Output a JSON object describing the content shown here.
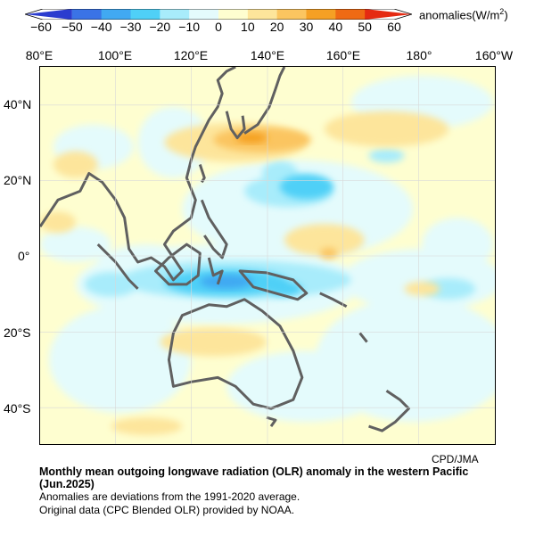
{
  "colorbar": {
    "ticks": [
      "−60",
      "−50",
      "−40",
      "−30",
      "−20",
      "−10",
      "0",
      "10",
      "20",
      "30",
      "40",
      "50",
      "60"
    ],
    "units_text": "anomalies(W/m",
    "units_sup": "2",
    "units_close": ")",
    "colors": [
      "#2b3ccf",
      "#3a73e6",
      "#41a9f2",
      "#4fd0f7",
      "#a8ecfb",
      "#e4fbfc",
      "#fefed0",
      "#fde59b",
      "#fbc560",
      "#f5a024",
      "#ef6a14",
      "#e52a12"
    ]
  },
  "axes": {
    "lon_labels": [
      "80°E",
      "100°E",
      "120°E",
      "140°E",
      "160°E",
      "180°",
      "160°W"
    ],
    "lat_labels": [
      "40°N",
      "20°N",
      "0°",
      "20°S",
      "40°S"
    ]
  },
  "credit": "CPD/JMA",
  "caption": {
    "title": "Monthly mean outgoing longwave radiation (OLR) anomaly in the western Pacific (Jun.2025)",
    "line1": "Anomalies are deviations from the 1991-2020 average.",
    "line2": "Original data (CPC Blended OLR) provided by NOAA."
  }
}
